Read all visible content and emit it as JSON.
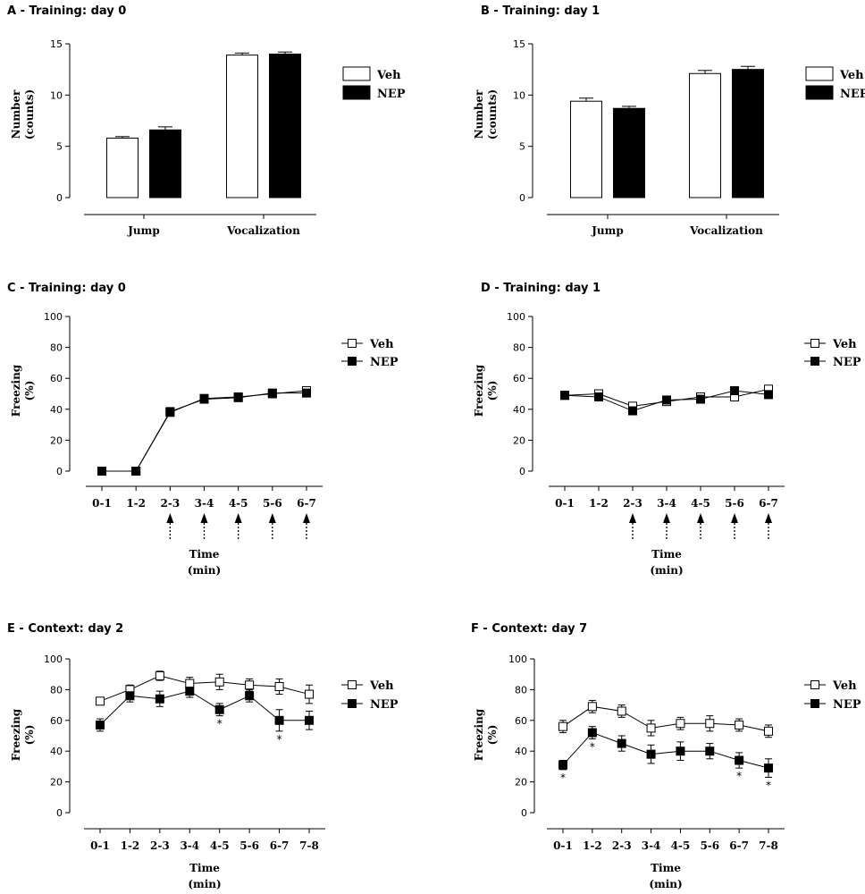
{
  "figure_name": "fear-conditioning-figure",
  "chart_data": [
    {
      "id": "A",
      "type": "bar",
      "title": "A - Training: day 0",
      "categories": [
        "Jump",
        "Vocalization"
      ],
      "series": [
        {
          "name": "Veh",
          "color": "#ffffff",
          "values": [
            5.8,
            13.9
          ],
          "errors": [
            0.15,
            0.2
          ]
        },
        {
          "name": "NEP",
          "color": "#000000",
          "values": [
            6.6,
            14.0
          ],
          "errors": [
            0.3,
            0.2
          ]
        }
      ],
      "ylabel": [
        "Number",
        "(counts)"
      ],
      "xlabel": [],
      "ylim": [
        0,
        15
      ],
      "yticks": [
        0,
        5,
        10,
        15
      ],
      "annotations": []
    },
    {
      "id": "B",
      "type": "bar",
      "title": "B - Training: day 1",
      "categories": [
        "Jump",
        "Vocalization"
      ],
      "series": [
        {
          "name": "Veh",
          "color": "#ffffff",
          "values": [
            9.4,
            12.1
          ],
          "errors": [
            0.3,
            0.3
          ]
        },
        {
          "name": "NEP",
          "color": "#000000",
          "values": [
            8.7,
            12.5
          ],
          "errors": [
            0.2,
            0.3
          ]
        }
      ],
      "ylabel": [
        "Number",
        "(counts)"
      ],
      "xlabel": [],
      "ylim": [
        0,
        15
      ],
      "yticks": [
        0,
        5,
        10,
        15
      ],
      "annotations": []
    },
    {
      "id": "C",
      "type": "line",
      "title": "C - Training: day 0",
      "categories": [
        "0-1",
        "1-2",
        "2-3",
        "3-4",
        "4-5",
        "5-6",
        "6-7"
      ],
      "series": [
        {
          "name": "Veh",
          "marker": "open-square",
          "values": [
            0,
            0,
            38,
            47,
            48,
            50,
            52
          ],
          "errors": [
            0,
            0,
            2,
            1.5,
            1.5,
            1.5,
            1.5
          ]
        },
        {
          "name": "NEP",
          "marker": "filled-square",
          "values": [
            0,
            0,
            38.5,
            46.5,
            47.5,
            50.5,
            50.5
          ],
          "errors": [
            0,
            0,
            2,
            1.5,
            1.5,
            1.5,
            1.5
          ]
        }
      ],
      "ylabel": [
        "Freezing",
        "(%)"
      ],
      "xlabel": [
        "Time",
        "(min)"
      ],
      "ylim": [
        0,
        100
      ],
      "yticks": [
        0,
        20,
        40,
        60,
        80,
        100
      ],
      "arrows_at": [
        "2-3",
        "3-4",
        "4-5",
        "5-6",
        "6-7"
      ],
      "annotations": []
    },
    {
      "id": "D",
      "type": "line",
      "title": "D - Training: day 1",
      "categories": [
        "0-1",
        "1-2",
        "2-3",
        "3-4",
        "4-5",
        "5-6",
        "6-7"
      ],
      "series": [
        {
          "name": "Veh",
          "marker": "open-square",
          "values": [
            49,
            50,
            42,
            45,
            48,
            48,
            53
          ],
          "errors": [
            2,
            2,
            2.5,
            2,
            2,
            2,
            2.5
          ]
        },
        {
          "name": "NEP",
          "marker": "filled-square",
          "values": [
            49,
            48,
            39,
            46,
            46.5,
            52,
            49.5
          ],
          "errors": [
            2,
            2,
            2.5,
            2,
            2,
            2,
            2.5
          ]
        }
      ],
      "ylabel": [
        "Freezing",
        "(%)"
      ],
      "xlabel": [
        "Time",
        "(min)"
      ],
      "ylim": [
        0,
        100
      ],
      "yticks": [
        0,
        20,
        40,
        60,
        80,
        100
      ],
      "arrows_at": [
        "2-3",
        "3-4",
        "4-5",
        "5-6",
        "6-7"
      ],
      "annotations": []
    },
    {
      "id": "E",
      "type": "line",
      "title": "E - Context: day 2",
      "categories": [
        "0-1",
        "1-2",
        "2-3",
        "3-4",
        "4-5",
        "5-6",
        "6-7",
        "7-8"
      ],
      "series": [
        {
          "name": "Veh",
          "marker": "open-square",
          "values": [
            72.5,
            80,
            89,
            84,
            85,
            83,
            82,
            77
          ],
          "errors": [
            2,
            3,
            3,
            4,
            5,
            4,
            5,
            6
          ]
        },
        {
          "name": "NEP",
          "marker": "filled-square",
          "values": [
            57,
            76,
            74,
            79,
            67,
            76,
            60,
            60
          ],
          "errors": [
            4,
            4,
            5,
            4,
            4,
            4,
            7,
            6
          ]
        }
      ],
      "ylabel": [
        "Freezing",
        "(%)"
      ],
      "xlabel": [
        "Time",
        "(min)"
      ],
      "ylim": [
        0,
        100
      ],
      "yticks": [
        0,
        20,
        40,
        60,
        80,
        100
      ],
      "arrows_at": [],
      "annotations": [
        {
          "category": "4-5",
          "text": "*"
        },
        {
          "category": "6-7",
          "text": "*"
        }
      ]
    },
    {
      "id": "F",
      "type": "line",
      "title": "F - Context: day 7",
      "categories": [
        "0-1",
        "1-2",
        "2-3",
        "3-4",
        "4-5",
        "5-6",
        "6-7",
        "7-8"
      ],
      "series": [
        {
          "name": "Veh",
          "marker": "open-square",
          "values": [
            56,
            69,
            66,
            55,
            58,
            58,
            57,
            53
          ],
          "errors": [
            4,
            4,
            4,
            5,
            4,
            5,
            4,
            4
          ]
        },
        {
          "name": "NEP",
          "marker": "filled-square",
          "values": [
            31,
            52,
            45,
            38,
            40,
            40,
            34,
            29
          ],
          "errors": [
            3,
            4,
            5,
            6,
            6,
            5,
            5,
            6
          ]
        }
      ],
      "ylabel": [
        "Freezing",
        "(%)"
      ],
      "xlabel": [
        "Time",
        "(min)"
      ],
      "ylim": [
        0,
        100
      ],
      "yticks": [
        0,
        20,
        40,
        60,
        80,
        100
      ],
      "arrows_at": [],
      "annotations": [
        {
          "category": "0-1",
          "text": "*"
        },
        {
          "category": "1-2",
          "text": "*"
        },
        {
          "category": "6-7",
          "text": "*"
        },
        {
          "category": "7-8",
          "text": "*"
        }
      ]
    }
  ]
}
